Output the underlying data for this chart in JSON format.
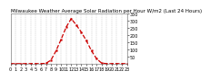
{
  "title": "Milwaukee Weather Average Solar Radiation per Hour W/m2 (Last 24 Hours)",
  "x_values": [
    0,
    1,
    2,
    3,
    4,
    5,
    6,
    7,
    8,
    9,
    10,
    11,
    12,
    13,
    14,
    15,
    16,
    17,
    18,
    19,
    20,
    21,
    22,
    23
  ],
  "y_values": [
    0,
    0,
    0,
    0,
    0,
    0,
    0,
    2,
    25,
    90,
    170,
    255,
    315,
    270,
    220,
    160,
    90,
    35,
    4,
    0,
    0,
    0,
    0,
    0
  ],
  "line_color": "#cc0000",
  "bg_color": "#ffffff",
  "plot_bg": "#ffffff",
  "grid_color": "#aaaaaa",
  "ylim": [
    0,
    350
  ],
  "xlim": [
    0,
    23
  ],
  "ytick_values": [
    50,
    100,
    150,
    200,
    250,
    300,
    350
  ],
  "xtick_positions": [
    0,
    1,
    2,
    3,
    4,
    5,
    6,
    7,
    8,
    9,
    10,
    11,
    12,
    13,
    14,
    15,
    16,
    17,
    18,
    19,
    20,
    21,
    22,
    23
  ],
  "title_fontsize": 4,
  "tick_fontsize": 3.5,
  "line_width": 0.9,
  "marker_size": 1.2
}
